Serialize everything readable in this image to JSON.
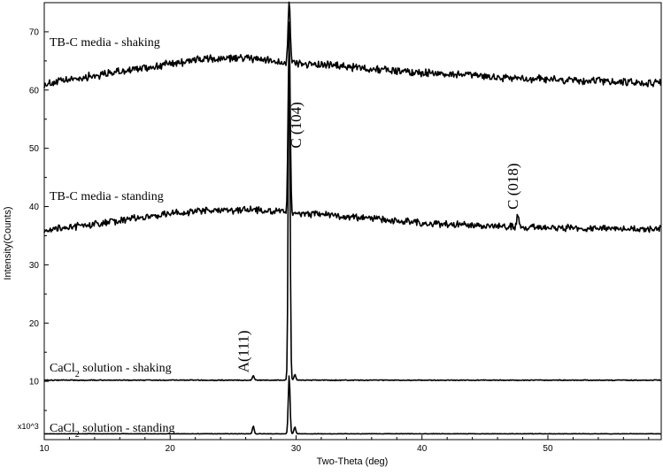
{
  "chart_data": {
    "type": "line",
    "xlabel": "Two-Theta (deg)",
    "ylabel": "Intensity(Counts)",
    "y_multiplier": "x10^3",
    "xlim": [
      10,
      59
    ],
    "ylim": [
      0,
      75
    ],
    "x_ticks": [
      10,
      20,
      30,
      40,
      50
    ],
    "y_ticks": [
      10,
      20,
      30,
      40,
      50,
      60,
      70
    ],
    "grid": false,
    "series": [
      {
        "name": "TB-C media - shaking",
        "label_parts": [
          "TB-C media - shaking"
        ],
        "baseline_points": [
          [
            10,
            61.0
          ],
          [
            14,
            62.5
          ],
          [
            18,
            63.8
          ],
          [
            22,
            65.2
          ],
          [
            26,
            65.5
          ],
          [
            29,
            64.8
          ],
          [
            34,
            64.0
          ],
          [
            40,
            63.0
          ],
          [
            46,
            62.2
          ],
          [
            52,
            61.6
          ],
          [
            59,
            61.2
          ]
        ],
        "noise_amplitude": 0.9,
        "peaks": [
          {
            "x": 29.45,
            "height": 10.5,
            "width": 0.12
          }
        ]
      },
      {
        "name": "TB-C media - standing",
        "label_parts": [
          "TB-C media - standing"
        ],
        "baseline_points": [
          [
            10,
            36.0
          ],
          [
            14,
            37.0
          ],
          [
            18,
            38.2
          ],
          [
            22,
            39.2
          ],
          [
            26,
            39.5
          ],
          [
            29,
            39.0
          ],
          [
            34,
            38.3
          ],
          [
            40,
            37.2
          ],
          [
            46,
            36.6
          ],
          [
            52,
            36.3
          ],
          [
            59,
            36.2
          ]
        ],
        "noise_amplitude": 0.8,
        "peaks": [
          {
            "x": 29.45,
            "height": 30.0,
            "width": 0.12
          },
          {
            "x": 47.6,
            "height": 2.0,
            "width": 0.12
          }
        ]
      },
      {
        "name": "CaCl2 solution - shaking",
        "label_parts": [
          "CaCl",
          "2",
          " solution - shaking"
        ],
        "baseline_points": [
          [
            10,
            10.2
          ],
          [
            59,
            10.2
          ]
        ],
        "noise_amplitude": 0.1,
        "peaks": [
          {
            "x": 26.6,
            "height": 0.8,
            "width": 0.1
          },
          {
            "x": 29.45,
            "height": 62.0,
            "width": 0.1
          },
          {
            "x": 29.9,
            "height": 1.0,
            "width": 0.1
          }
        ]
      },
      {
        "name": "CaCl2 solution - standing",
        "label_parts": [
          "CaCl",
          "2",
          " solution - standing"
        ],
        "baseline_points": [
          [
            10,
            1.0
          ],
          [
            59,
            1.0
          ]
        ],
        "noise_amplitude": 0.05,
        "peaks": [
          {
            "x": 26.6,
            "height": 1.3,
            "width": 0.1
          },
          {
            "x": 29.45,
            "height": 10.0,
            "width": 0.1
          },
          {
            "x": 29.9,
            "height": 1.2,
            "width": 0.1
          }
        ]
      }
    ],
    "annotations": [
      {
        "text": "C (104)",
        "x": 30.4,
        "y": 50.0,
        "rotation": -90
      },
      {
        "text": "C (018)",
        "x": 47.6,
        "y": 39.5,
        "rotation": -90
      },
      {
        "text": "A(111)",
        "x": 26.2,
        "y": 11.5,
        "rotation": -90
      }
    ]
  }
}
